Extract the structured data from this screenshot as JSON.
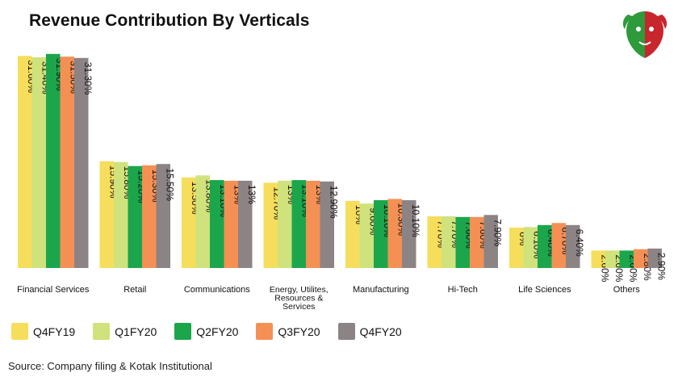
{
  "title": "Revenue Contribution By Verticals",
  "source": "Source: Company filing & Kotak Institutional",
  "logo": {
    "icon": "bull-bear-logo-icon",
    "colors": [
      "#2e9a3b",
      "#c8252c"
    ]
  },
  "chart_data": {
    "type": "bar",
    "title": "Revenue Contribution By Verticals",
    "xlabel": "",
    "ylabel": "",
    "ylim": [
      0,
      32
    ],
    "grid": false,
    "legend_position": "bottom",
    "categories": [
      "Financial Services",
      "Retail",
      "Communications",
      "Energy, Utilites, Resources & Services",
      "Manufacturing",
      "Hi-Tech",
      "Life Sciences",
      "Others"
    ],
    "category_lines": [
      [
        "Financial Services"
      ],
      [
        "Retail"
      ],
      [
        "Communications"
      ],
      [
        "Energy, Utilites,",
        "Resources &",
        "Services"
      ],
      [
        "Manufacturing"
      ],
      [
        "Hi-Tech"
      ],
      [
        "Life Sciences"
      ],
      [
        "Others"
      ]
    ],
    "series": [
      {
        "name": "Q4FY19",
        "color": "#f6dd5c",
        "values": [
          31.6,
          15.9,
          13.5,
          12.7,
          10,
          7.7,
          6,
          2.6
        ],
        "labels": [
          "31.60%",
          "15.90%",
          "13.50%",
          "12.70%",
          "10%",
          "7.70%",
          "6%",
          "2.60%"
        ]
      },
      {
        "name": "Q1FY20",
        "color": "#cfe27c",
        "values": [
          31.4,
          15.8,
          13.8,
          13,
          9.6,
          7.7,
          6.1,
          2.6
        ],
        "labels": [
          "31.40%",
          "15.80%",
          "13.80%",
          "13%",
          "9.60%",
          "7.70%",
          "6.10%",
          "2.60%"
        ]
      },
      {
        "name": "Q2FY20",
        "color": "#1ba64c",
        "values": [
          31.9,
          15.2,
          13.1,
          13.1,
          10.1,
          7.6,
          6.4,
          2.6
        ],
        "labels": [
          "31.90%",
          "15.20%",
          "13.10%",
          "13.10%",
          "10.10%",
          "7.60%",
          "6.40%",
          "2.60%"
        ]
      },
      {
        "name": "Q3FY20",
        "color": "#f59055",
        "values": [
          31.5,
          15.3,
          13,
          13,
          10.3,
          7.6,
          6.7,
          2.8
        ],
        "labels": [
          "31.50%",
          "15.30%",
          "13%",
          "13%",
          "10.30%",
          "7.60%",
          "6.70%",
          "2.80%"
        ]
      },
      {
        "name": "Q4FY20",
        "color": "#8c8385",
        "values": [
          31.3,
          15.5,
          13,
          12.9,
          10.1,
          7.9,
          6.4,
          2.9
        ],
        "labels": [
          "31.30%",
          "15.50%",
          "13%",
          "12.90%",
          "10.10%",
          "7.90%",
          "6.40%",
          "2.90%"
        ]
      }
    ]
  }
}
